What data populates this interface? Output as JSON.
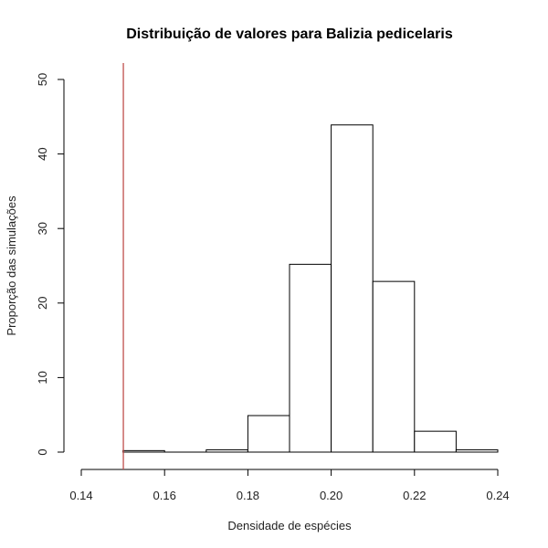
{
  "chart_data": {
    "type": "bar",
    "title": "Distribuição de valores para Balizia pedicelaris",
    "xlabel": "Densidade de espécies",
    "ylabel": "Proporção das simulações",
    "xlim": [
      0.14,
      0.24
    ],
    "ylim": [
      0,
      50
    ],
    "xticks": [
      "0.14",
      "0.16",
      "0.18",
      "0.20",
      "0.22",
      "0.24"
    ],
    "yticks": [
      "0",
      "10",
      "20",
      "30",
      "40",
      "50"
    ],
    "bins": [
      {
        "x0": 0.15,
        "x1": 0.16,
        "value": 0.2
      },
      {
        "x0": 0.16,
        "x1": 0.17,
        "value": 0.0
      },
      {
        "x0": 0.17,
        "x1": 0.18,
        "value": 0.3
      },
      {
        "x0": 0.18,
        "x1": 0.19,
        "value": 4.9
      },
      {
        "x0": 0.19,
        "x1": 0.2,
        "value": 25.2
      },
      {
        "x0": 0.2,
        "x1": 0.21,
        "value": 43.9
      },
      {
        "x0": 0.21,
        "x1": 0.22,
        "value": 22.9
      },
      {
        "x0": 0.22,
        "x1": 0.23,
        "value": 2.8
      },
      {
        "x0": 0.23,
        "x1": 0.24,
        "value": 0.3
      }
    ],
    "reference_line": {
      "x": 0.1501,
      "color": "#c0504d"
    },
    "grid": false
  }
}
